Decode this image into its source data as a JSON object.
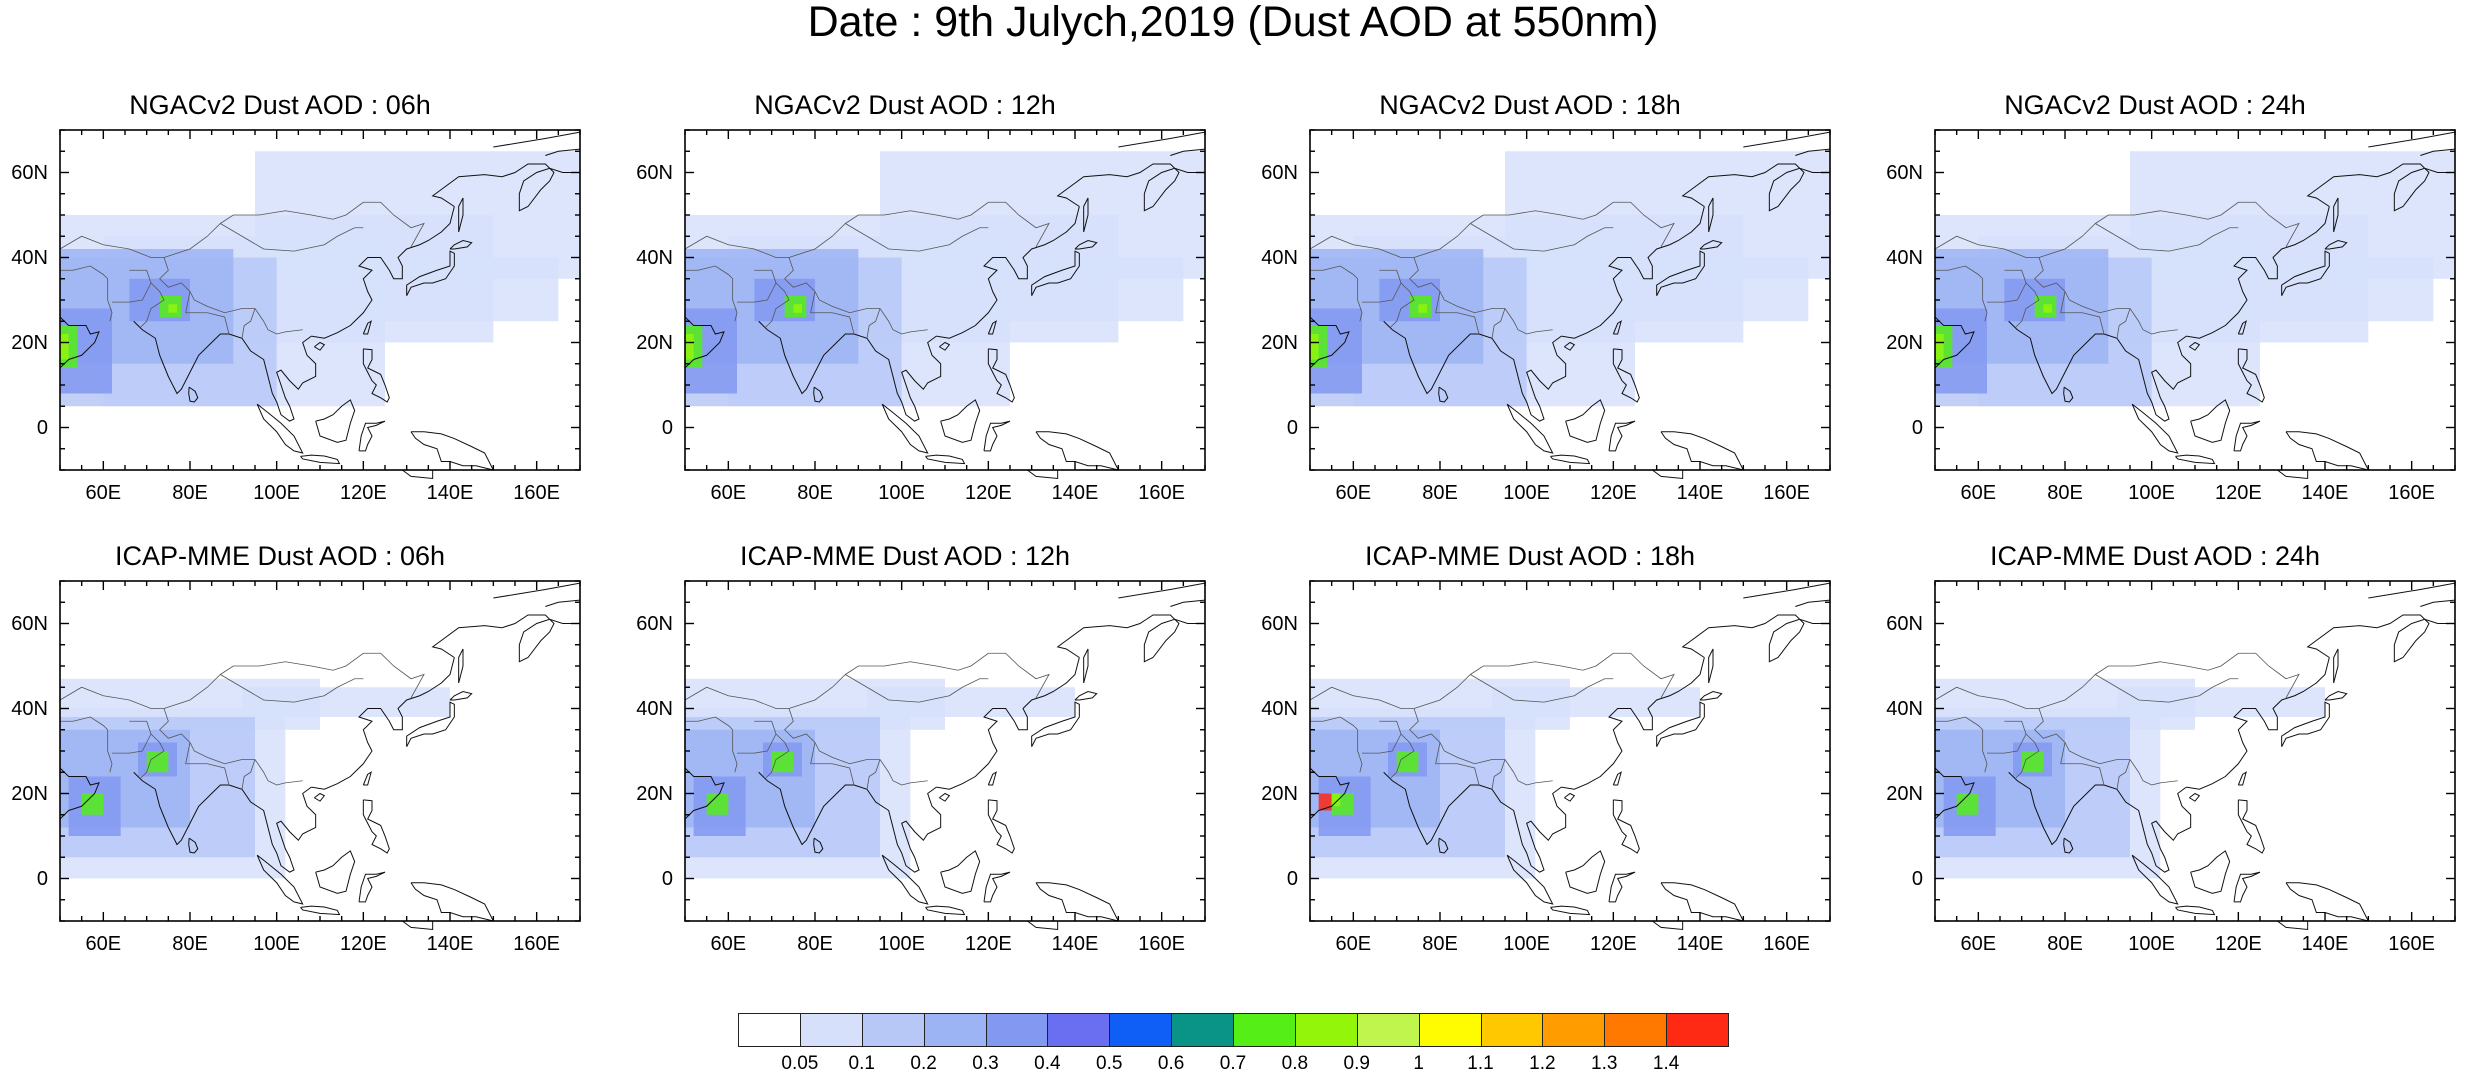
{
  "figure": {
    "title": "Date : 9th Julych,2019 (Dust AOD at 550nm)"
  },
  "axes": {
    "lat_ticks": [
      "60N",
      "40N",
      "20N",
      "0"
    ],
    "lon_ticks": [
      "60E",
      "80E",
      "100E",
      "120E",
      "140E",
      "160E"
    ],
    "lat_values": [
      60,
      40,
      20,
      0
    ],
    "lon_values": [
      60,
      80,
      100,
      120,
      140,
      160
    ],
    "lon_range": [
      50,
      170
    ],
    "lat_range": [
      -10,
      70
    ]
  },
  "panels": [
    {
      "title": "NGACv2 Dust AOD : 06h",
      "row": 0,
      "col": 0,
      "variant": 0
    },
    {
      "title": "NGACv2 Dust AOD : 12h",
      "row": 0,
      "col": 1,
      "variant": 1
    },
    {
      "title": "NGACv2 Dust AOD : 18h",
      "row": 0,
      "col": 2,
      "variant": 2
    },
    {
      "title": "NGACv2 Dust AOD : 24h",
      "row": 0,
      "col": 3,
      "variant": 3
    },
    {
      "title": "ICAP-MME Dust AOD : 06h",
      "row": 1,
      "col": 0,
      "variant": 4
    },
    {
      "title": "ICAP-MME Dust AOD : 12h",
      "row": 1,
      "col": 1,
      "variant": 5
    },
    {
      "title": "ICAP-MME Dust AOD : 18h",
      "row": 1,
      "col": 2,
      "variant": 6
    },
    {
      "title": "ICAP-MME Dust AOD : 24h",
      "row": 1,
      "col": 3,
      "variant": 7
    }
  ],
  "colorbar": {
    "labels": [
      "0.05",
      "0.1",
      "0.2",
      "0.3",
      "0.4",
      "0.5",
      "0.6",
      "0.7",
      "0.8",
      "0.9",
      "1",
      "1.1",
      "1.2",
      "1.3",
      "1.4"
    ],
    "colors": [
      "#ffffff",
      "#d6e0fb",
      "#b7c8f7",
      "#9db4f4",
      "#8398f1",
      "#6a6ef0",
      "#0f5ef5",
      "#0a9488",
      "#55ee16",
      "#92f50a",
      "#c0f54d",
      "#fffb00",
      "#ffc800",
      "#ff9d00",
      "#ff7800",
      "#ff2a14"
    ]
  }
}
